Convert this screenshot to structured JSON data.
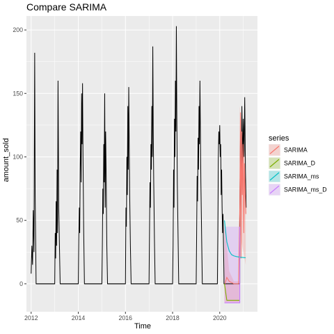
{
  "chart_data": {
    "type": "line",
    "title": "Compare SARIMA",
    "xlabel": "Time",
    "ylabel": "amount_sold",
    "xlim": [
      2011.8,
      2021.6
    ],
    "ylim": [
      -22,
      211
    ],
    "x_ticks": [
      2012,
      2014,
      2016,
      2018,
      2020
    ],
    "x_tick_labels": [
      "2012",
      "2014",
      "2016",
      "2018",
      "2020"
    ],
    "y_ticks": [
      0,
      50,
      100,
      150,
      200
    ],
    "y_tick_labels": [
      "0",
      "50",
      "100",
      "150",
      "200"
    ],
    "grid": true,
    "legend": {
      "title": "series",
      "position": "right",
      "entries": [
        {
          "name": "SARIMA",
          "color": "#F8766D"
        },
        {
          "name": "SARIMA_D",
          "color": "#7CAE00"
        },
        {
          "name": "SARIMA_ms",
          "color": "#00BFC4"
        },
        {
          "name": "SARIMA_ms_D",
          "color": "#C77CFF"
        }
      ]
    },
    "observed": {
      "color": "#000000",
      "points": [
        [
          2012.0,
          8
        ],
        [
          2012.03,
          30
        ],
        [
          2012.06,
          15
        ],
        [
          2012.09,
          58
        ],
        [
          2012.12,
          25
        ],
        [
          2012.15,
          182
        ],
        [
          2012.17,
          70
        ],
        [
          2012.19,
          35
        ],
        [
          2012.21,
          0
        ],
        [
          2013.0,
          0
        ],
        [
          2013.02,
          40
        ],
        [
          2013.04,
          20
        ],
        [
          2013.06,
          65
        ],
        [
          2013.08,
          30
        ],
        [
          2013.1,
          90
        ],
        [
          2013.12,
          40
        ],
        [
          2013.14,
          160
        ],
        [
          2013.17,
          60
        ],
        [
          2013.2,
          30
        ],
        [
          2013.23,
          0
        ],
        [
          2014.0,
          0
        ],
        [
          2014.02,
          35
        ],
        [
          2014.04,
          60
        ],
        [
          2014.06,
          40
        ],
        [
          2014.08,
          90
        ],
        [
          2014.1,
          120
        ],
        [
          2014.12,
          80
        ],
        [
          2014.14,
          150
        ],
        [
          2014.16,
          110
        ],
        [
          2014.18,
          158
        ],
        [
          2014.2,
          100
        ],
        [
          2014.23,
          40
        ],
        [
          2014.26,
          0
        ],
        [
          2015.0,
          0
        ],
        [
          2015.02,
          30
        ],
        [
          2015.04,
          75
        ],
        [
          2015.06,
          55
        ],
        [
          2015.08,
          110
        ],
        [
          2015.1,
          80
        ],
        [
          2015.12,
          150
        ],
        [
          2015.14,
          60
        ],
        [
          2015.16,
          120
        ],
        [
          2015.18,
          90
        ],
        [
          2015.21,
          30
        ],
        [
          2015.24,
          0
        ],
        [
          2016.0,
          0
        ],
        [
          2016.02,
          60
        ],
        [
          2016.04,
          45
        ],
        [
          2016.06,
          100
        ],
        [
          2016.08,
          70
        ],
        [
          2016.1,
          140
        ],
        [
          2016.12,
          90
        ],
        [
          2016.14,
          155
        ],
        [
          2016.16,
          110
        ],
        [
          2016.18,
          70
        ],
        [
          2016.21,
          30
        ],
        [
          2016.24,
          0
        ],
        [
          2017.0,
          0
        ],
        [
          2017.02,
          40
        ],
        [
          2017.04,
          80
        ],
        [
          2017.06,
          60
        ],
        [
          2017.08,
          110
        ],
        [
          2017.1,
          90
        ],
        [
          2017.12,
          140
        ],
        [
          2017.14,
          100
        ],
        [
          2017.16,
          187
        ],
        [
          2017.18,
          120
        ],
        [
          2017.2,
          80
        ],
        [
          2017.23,
          35
        ],
        [
          2017.26,
          0
        ],
        [
          2018.0,
          0
        ],
        [
          2018.02,
          30
        ],
        [
          2018.04,
          90
        ],
        [
          2018.06,
          60
        ],
        [
          2018.08,
          130
        ],
        [
          2018.1,
          100
        ],
        [
          2018.12,
          160
        ],
        [
          2018.14,
          120
        ],
        [
          2018.16,
          203
        ],
        [
          2018.18,
          130
        ],
        [
          2018.2,
          80
        ],
        [
          2018.23,
          40
        ],
        [
          2018.26,
          0
        ],
        [
          2019.0,
          0
        ],
        [
          2019.02,
          40
        ],
        [
          2019.04,
          85
        ],
        [
          2019.06,
          65
        ],
        [
          2019.08,
          115
        ],
        [
          2019.1,
          90
        ],
        [
          2019.12,
          140
        ],
        [
          2019.14,
          110
        ],
        [
          2019.16,
          160
        ],
        [
          2019.18,
          120
        ],
        [
          2019.2,
          80
        ],
        [
          2019.23,
          40
        ],
        [
          2019.26,
          0
        ],
        [
          2019.9,
          0
        ],
        [
          2019.92,
          40
        ],
        [
          2019.94,
          100
        ],
        [
          2019.96,
          120
        ],
        [
          2019.98,
          110
        ],
        [
          2020.0,
          125
        ],
        [
          2020.02,
          100
        ],
        [
          2020.04,
          110
        ],
        [
          2020.06,
          70
        ],
        [
          2020.08,
          90
        ],
        [
          2020.1,
          60
        ],
        [
          2020.12,
          40
        ],
        [
          2020.14,
          55
        ],
        [
          2020.16,
          30
        ],
        [
          2020.18,
          5
        ],
        [
          2020.18,
          0
        ],
        [
          2020.85,
          0
        ],
        [
          2020.85,
          60
        ],
        [
          2020.88,
          120
        ],
        [
          2020.91,
          70
        ],
        [
          2020.94,
          140
        ],
        [
          2020.97,
          95
        ],
        [
          2021.0,
          130
        ],
        [
          2021.03,
          100
        ],
        [
          2021.06,
          147
        ],
        [
          2021.09,
          90
        ],
        [
          2021.12,
          60
        ]
      ],
      "flat_zero_segments": [
        [
          2012.21,
          2013.0
        ],
        [
          2013.23,
          2014.0
        ],
        [
          2014.26,
          2015.0
        ],
        [
          2015.24,
          2016.0
        ],
        [
          2016.24,
          2017.0
        ],
        [
          2017.26,
          2018.0
        ],
        [
          2018.26,
          2019.0
        ],
        [
          2019.26,
          2019.9
        ]
      ]
    },
    "series": [
      {
        "name": "SARIMA",
        "color": "#F8766D",
        "values": [
          [
            2020.22,
            0
          ],
          [
            2020.3,
            5
          ],
          [
            2020.4,
            2
          ],
          [
            2020.5,
            1
          ],
          [
            2020.6,
            0
          ],
          [
            2020.7,
            0
          ],
          [
            2020.8,
            0
          ],
          [
            2020.85,
            60
          ],
          [
            2020.88,
            135
          ],
          [
            2020.9,
            20
          ],
          [
            2020.93,
            120
          ],
          [
            2020.96,
            70
          ],
          [
            2020.99,
            110
          ],
          [
            2021.02,
            40
          ],
          [
            2021.05,
            95
          ],
          [
            2021.08,
            70
          ],
          [
            2021.11,
            55
          ]
        ],
        "band": [
          [
            2020.2,
            -15,
            50
          ],
          [
            2020.4,
            -15,
            10
          ],
          [
            2020.6,
            -15,
            2
          ],
          [
            2020.85,
            -15,
            2
          ],
          [
            2020.85,
            40,
            140
          ],
          [
            2021.1,
            15,
            100
          ]
        ]
      },
      {
        "name": "SARIMA_D",
        "color": "#7CAE00",
        "values": [
          [
            2020.2,
            0
          ],
          [
            2020.3,
            -13
          ],
          [
            2020.5,
            -13
          ],
          [
            2020.7,
            -13
          ],
          [
            2020.85,
            -13
          ]
        ],
        "band": []
      },
      {
        "name": "SARIMA_ms",
        "color": "#00BFC4",
        "values": [
          [
            2020.2,
            50
          ],
          [
            2020.3,
            33
          ],
          [
            2020.4,
            26
          ],
          [
            2020.5,
            23
          ],
          [
            2020.6,
            22
          ],
          [
            2020.7,
            21.5
          ],
          [
            2020.85,
            21
          ],
          [
            2021.1,
            20.5
          ]
        ],
        "band": []
      },
      {
        "name": "SARIMA_ms_D",
        "color": "#C77CFF",
        "values": [
          [
            2020.2,
            -15
          ],
          [
            2020.85,
            -15
          ],
          [
            2020.85,
            45
          ],
          [
            2020.85,
            -15
          ]
        ],
        "band": [
          [
            2020.2,
            -15,
            45
          ],
          [
            2020.85,
            -15,
            45
          ]
        ]
      }
    ]
  }
}
